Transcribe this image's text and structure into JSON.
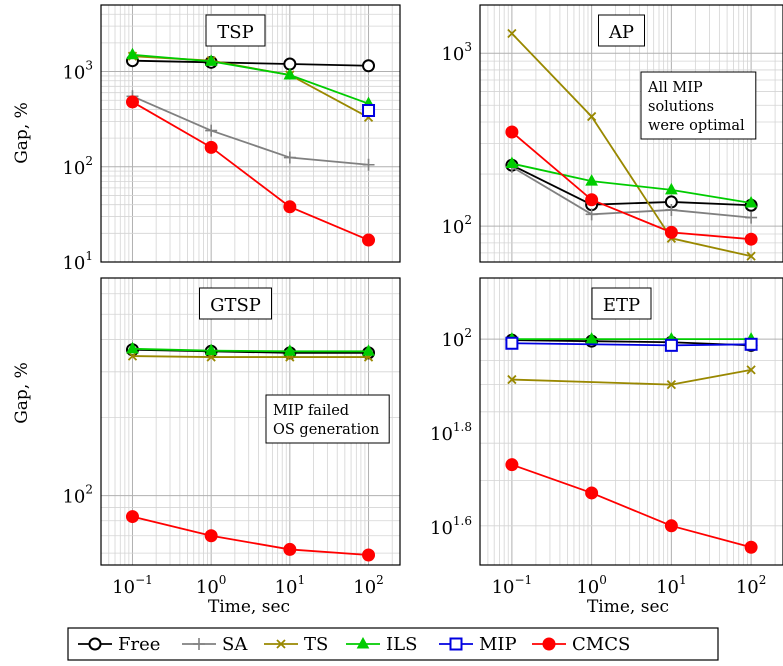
{
  "figure": {
    "ylabel": "Gap, %",
    "xlabel": "Time, sec",
    "x_ticks": [
      "-1",
      "0",
      "1",
      "2"
    ]
  },
  "series_styles": [
    {
      "name": "Free",
      "color": "#000000",
      "marker": "circle-open"
    },
    {
      "name": "SA",
      "color": "#808080",
      "marker": "plus"
    },
    {
      "name": "TS",
      "color": "#998800",
      "marker": "x"
    },
    {
      "name": "ILS",
      "color": "#00cc00",
      "marker": "triangle"
    },
    {
      "name": "MIP",
      "color": "#0000e0",
      "marker": "square-open"
    },
    {
      "name": "CMCS",
      "color": "#ff0000",
      "marker": "circle-filled"
    }
  ],
  "chart_data": [
    {
      "type": "line",
      "title": "TSP",
      "x": [
        0.1,
        1,
        10,
        100
      ],
      "yscale": "log",
      "ylim": [
        10,
        5000
      ],
      "y_ticks": [
        {
          "base": "10",
          "exp": "1"
        },
        {
          "base": "10",
          "exp": "2"
        },
        {
          "base": "10",
          "exp": "3"
        }
      ],
      "series": [
        {
          "name": "Free",
          "values": [
            1300,
            1250,
            1200,
            1150
          ]
        },
        {
          "name": "SA",
          "values": [
            550,
            240,
            125,
            105
          ]
        },
        {
          "name": "TS",
          "values": [
            1450,
            1300,
            920,
            330
          ]
        },
        {
          "name": "ILS",
          "values": [
            1500,
            1280,
            920,
            460
          ]
        },
        {
          "name": "MIP",
          "values": [
            null,
            null,
            null,
            390
          ]
        },
        {
          "name": "CMCS",
          "values": [
            480,
            160,
            38,
            17
          ]
        }
      ],
      "annotation": []
    },
    {
      "type": "line",
      "title": "AP",
      "x": [
        0.1,
        1,
        10,
        100
      ],
      "yscale": "log",
      "ylim": [
        62,
        1900
      ],
      "y_ticks": [
        {
          "base": "10",
          "exp": "2"
        },
        {
          "base": "10",
          "exp": "3"
        }
      ],
      "series": [
        {
          "name": "Free",
          "values": [
            225,
            133,
            138,
            132
          ]
        },
        {
          "name": "SA",
          "values": [
            220,
            117,
            124,
            112
          ]
        },
        {
          "name": "TS",
          "values": [
            1300,
            430,
            85,
            67
          ]
        },
        {
          "name": "ILS",
          "values": [
            230,
            182,
            162,
            136
          ]
        },
        {
          "name": "CMCS",
          "values": [
            350,
            142,
            92,
            84
          ]
        }
      ],
      "annotation": [
        "All MIP",
        "solutions",
        "were optimal"
      ]
    },
    {
      "type": "line",
      "title": "GTSP",
      "x": [
        0.1,
        1,
        10,
        100
      ],
      "yscale": "log",
      "ylim": [
        54,
        690
      ],
      "y_ticks": [
        {
          "base": "10",
          "exp": "2"
        }
      ],
      "series": [
        {
          "name": "Free",
          "values": [
            365,
            360,
            355,
            355
          ]
        },
        {
          "name": "TS",
          "values": [
            345,
            342,
            342,
            342
          ]
        },
        {
          "name": "ILS",
          "values": [
            368,
            362,
            360,
            360
          ]
        },
        {
          "name": "CMCS",
          "values": [
            83,
            70,
            62,
            59
          ]
        }
      ],
      "annotation": [
        "MIP failed",
        "OS generation"
      ]
    },
    {
      "type": "line",
      "title": "ETP",
      "x": [
        0.1,
        1,
        10,
        100
      ],
      "yscale": "log",
      "ylim": [
        33,
        135
      ],
      "y_ticks": [
        {
          "base": "10",
          "exp": "1.6"
        },
        {
          "base": "10",
          "exp": "1.8"
        },
        {
          "base": "10",
          "exp": "2"
        }
      ],
      "series": [
        {
          "name": "Free",
          "values": [
            99.5,
            99,
            98.5,
            97
          ]
        },
        {
          "name": "TS",
          "values": [
            82,
            null,
            80,
            86
          ]
        },
        {
          "name": "ILS",
          "values": [
            100,
            100,
            100,
            100
          ]
        },
        {
          "name": "MIP",
          "values": [
            98,
            null,
            97,
            97.5
          ]
        },
        {
          "name": "CMCS",
          "values": [
            54,
            47,
            40,
            36
          ]
        }
      ],
      "annotation": []
    }
  ]
}
